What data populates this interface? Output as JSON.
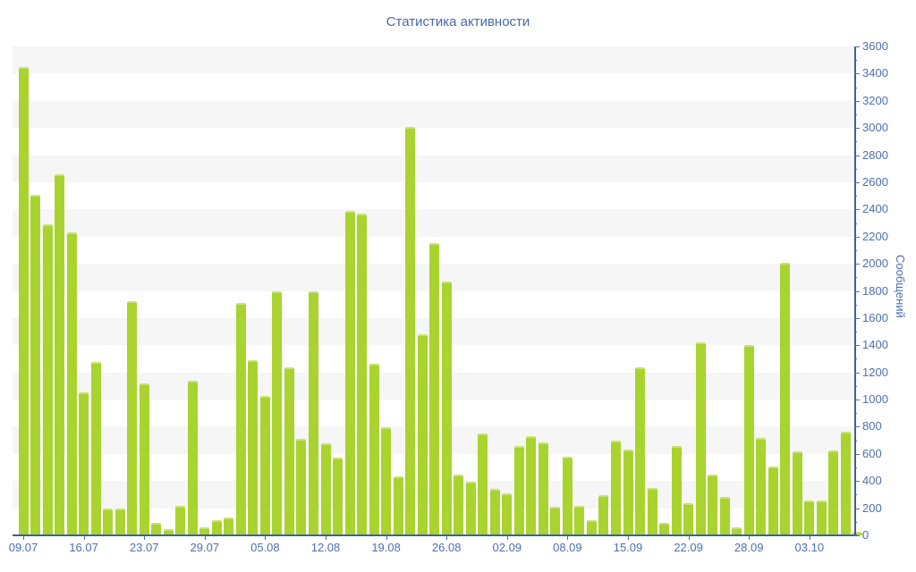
{
  "title": "Статистика активности",
  "y_axis": {
    "label": "Сообщений",
    "min": 0,
    "max": 3600,
    "major_step": 200,
    "minor_step": 100,
    "tick_labels": [
      "0",
      "200",
      "400",
      "600",
      "800",
      "1000",
      "1200",
      "1400",
      "1600",
      "1800",
      "2000",
      "2200",
      "2400",
      "2600",
      "2800",
      "3000",
      "3200",
      "3400",
      "3600"
    ]
  },
  "x_axis": {
    "tick_labels": [
      "09.07",
      "16.07",
      "23.07",
      "29.07",
      "05.08",
      "12.08",
      "19.08",
      "26.08",
      "02.09",
      "08.09",
      "15.09",
      "22.09",
      "28.09",
      "03.10"
    ],
    "ticks_every_n_bars": 5
  },
  "chart_data": {
    "type": "bar",
    "title": "Статистика активности",
    "ylabel": "Сообщений",
    "ylim": [
      0,
      3600
    ],
    "bar_count": 70,
    "grid": "horizontal-stripes-every-200",
    "legend": "none",
    "y_axis_position": "right",
    "tick_label_positions": [
      0,
      5,
      10,
      15,
      20,
      25,
      30,
      35,
      40,
      45,
      50,
      55,
      60,
      65
    ],
    "tick_labels": [
      "09.07",
      "16.07",
      "23.07",
      "29.07",
      "05.08",
      "12.08",
      "19.08",
      "26.08",
      "02.09",
      "08.09",
      "15.09",
      "22.09",
      "28.09",
      "03.10"
    ],
    "values": [
      3450,
      2510,
      2290,
      2660,
      2230,
      1050,
      1280,
      200,
      200,
      1725,
      1120,
      90,
      45,
      220,
      1140,
      60,
      110,
      130,
      1710,
      1290,
      1030,
      1800,
      1240,
      710,
      1800,
      675,
      575,
      2390,
      2370,
      1265,
      795,
      435,
      3010,
      1480,
      2150,
      1870,
      450,
      395,
      750,
      345,
      310,
      660,
      730,
      685,
      210,
      580,
      220,
      115,
      295,
      700,
      630,
      1240,
      350,
      90,
      660,
      235,
      1420,
      445,
      280,
      60,
      1400,
      720,
      510,
      2010,
      620,
      260,
      260,
      625,
      765,
      25
    ]
  },
  "colors": {
    "bar": "#a9d32e",
    "bar_cap": "#c8e276",
    "stripe": "#f6f6f6",
    "axis_line": "#3f5e9e",
    "tick_text": "#4e6fb3",
    "title_text": "#4669ad",
    "background": "#ffffff"
  }
}
